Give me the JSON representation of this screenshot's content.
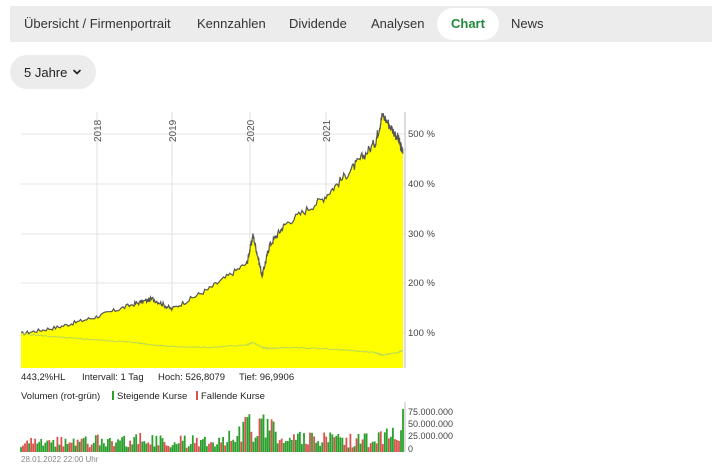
{
  "tabs": [
    {
      "label": "Übersicht / Firmenportrait",
      "active": false
    },
    {
      "label": "Kennzahlen",
      "active": false
    },
    {
      "label": "Dividende",
      "active": false
    },
    {
      "label": "Analysen",
      "active": false
    },
    {
      "label": "Chart",
      "active": true
    },
    {
      "label": "News",
      "active": false
    }
  ],
  "period": {
    "selected": "5 Jahre",
    "icon": "chevron-down-icon"
  },
  "colors": {
    "accent": "#1f8a3b",
    "area": "#ffff00",
    "line": "#555555",
    "volume_up": "#2ca02c",
    "volume_down": "#d9534f"
  },
  "stats": {
    "change": "443,2%HL",
    "interval": "Intervall: 1 Tag",
    "high": "Hoch: 526,8079",
    "low": "Tief: 96,9906"
  },
  "volume_header": {
    "title": "Volumen (rot-grün)",
    "rising": "Steigende Kurse",
    "falling": "Fallende Kurse"
  },
  "footer": "28.01.2022 22:00 Uhr",
  "chart_data": [
    {
      "type": "area",
      "x_tick_labels": [
        "2018",
        "2019",
        "2020",
        "2021"
      ],
      "y_tick_labels": [
        "100 %",
        "200 %",
        "300 %",
        "400 %",
        "500 %"
      ],
      "ylim": [
        30,
        530
      ],
      "x": [
        2017.0,
        2017.5,
        2018.0,
        2018.5,
        2018.75,
        2019.0,
        2019.5,
        2020.0,
        2020.08,
        2020.2,
        2020.3,
        2020.5,
        2021.0,
        2021.4,
        2021.7,
        2021.8,
        2022.0,
        2022.07
      ],
      "series": [
        {
          "values": [
            97,
            110,
            130,
            155,
            165,
            145,
            185,
            235,
            290,
            210,
            270,
            310,
            360,
            420,
            470,
            525,
            480,
            450
          ]
        },
        {
          "values": [
            97,
            90,
            85,
            80,
            75,
            72,
            70,
            75,
            80,
            70,
            68,
            70,
            68,
            64,
            60,
            55,
            60,
            65
          ]
        }
      ]
    },
    {
      "type": "bar",
      "title": "Volumen (rot-grün)",
      "y_tick_labels": [
        "75.000.000",
        "50.000.000",
        "25.000.000",
        "0"
      ],
      "ylim": [
        0,
        80000000
      ],
      "x": [
        2017.0,
        2017.5,
        2018.0,
        2018.5,
        2019.0,
        2019.5,
        2020.0,
        2020.2,
        2020.5,
        2021.0,
        2021.5,
        2022.0,
        2022.07
      ],
      "values": [
        15000000,
        18000000,
        20000000,
        22000000,
        18000000,
        20000000,
        40000000,
        55000000,
        25000000,
        22000000,
        20000000,
        30000000,
        75000000
      ]
    }
  ]
}
